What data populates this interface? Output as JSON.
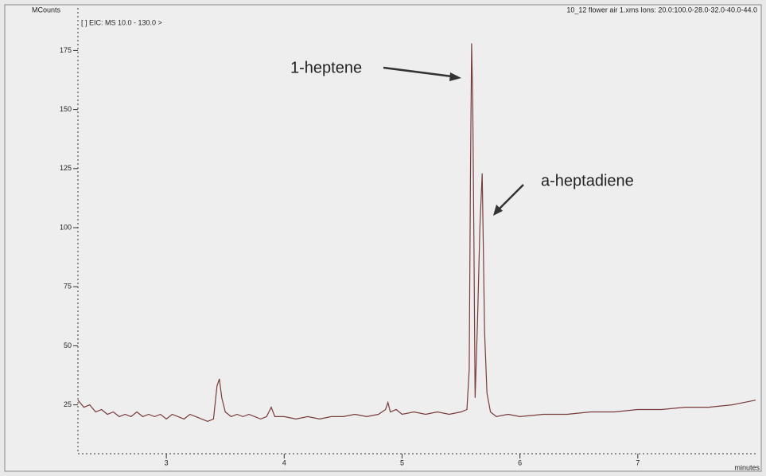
{
  "chart_data": {
    "type": "line",
    "ylabel": "MCounts",
    "xlabel": "minutes",
    "subtitle": "[ ] EIC: MS 10.0 - 130.0 >",
    "title": "10_12 flower air 1.xms  Ions: 20.0:100.0-28.0-32.0-40.0-44.0",
    "annotations": [
      "1-heptene",
      "a-heptadiene"
    ],
    "x": [
      2.25,
      2.3,
      2.35,
      2.4,
      2.45,
      2.5,
      2.55,
      2.6,
      2.65,
      2.7,
      2.75,
      2.8,
      2.85,
      2.9,
      2.95,
      3.0,
      3.05,
      3.1,
      3.15,
      3.2,
      3.25,
      3.3,
      3.35,
      3.4,
      3.43,
      3.45,
      3.47,
      3.5,
      3.55,
      3.6,
      3.65,
      3.7,
      3.75,
      3.8,
      3.85,
      3.89,
      3.92,
      4.0,
      4.1,
      4.2,
      4.3,
      4.4,
      4.5,
      4.6,
      4.7,
      4.8,
      4.86,
      4.88,
      4.9,
      4.95,
      5.0,
      5.1,
      5.2,
      5.3,
      5.4,
      5.5,
      5.55,
      5.57,
      5.58,
      5.59,
      5.6,
      5.61,
      5.62,
      5.64,
      5.66,
      5.68,
      5.69,
      5.7,
      5.72,
      5.75,
      5.8,
      5.9,
      6.0,
      6.2,
      6.4,
      6.6,
      6.8,
      7.0,
      7.2,
      7.4,
      7.6,
      7.8,
      8.0
    ],
    "series": [
      {
        "color": "#7a3b3b",
        "values": [
          27,
          24,
          25,
          22,
          23,
          21,
          22,
          20,
          21,
          20,
          22,
          20,
          21,
          20,
          21,
          19,
          21,
          20,
          19,
          21,
          20,
          19,
          18,
          19,
          33,
          36,
          28,
          22,
          20,
          21,
          20,
          21,
          20,
          19,
          20,
          24,
          20,
          20,
          19,
          20,
          19,
          20,
          20,
          21,
          20,
          21,
          23,
          26,
          22,
          23,
          21,
          22,
          21,
          22,
          21,
          22,
          23,
          40,
          120,
          178,
          150,
          90,
          28,
          60,
          100,
          123,
          90,
          56,
          30,
          22,
          20,
          21,
          20,
          21,
          21,
          22,
          22,
          23,
          23,
          24,
          24,
          25,
          27
        ]
      }
    ],
    "xlim": [
      2.25,
      8.0
    ],
    "ylim": [
      6,
      193
    ],
    "xticks": [
      3,
      4,
      5,
      6,
      7
    ],
    "yticks": [
      25,
      50,
      75,
      100,
      125,
      150,
      175
    ]
  }
}
